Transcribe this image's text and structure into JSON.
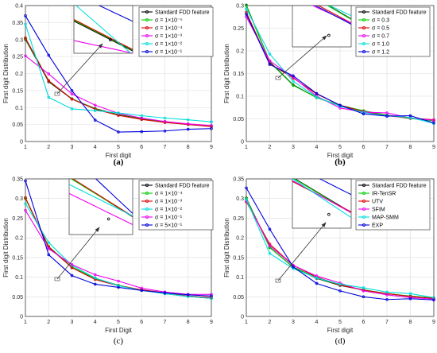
{
  "chart_data": [
    {
      "type": "line",
      "panel": "a",
      "caption": "(a)",
      "xlabel": "First digit",
      "ylabel": "First digit Distribution",
      "xlim": [
        1,
        9
      ],
      "ylim": [
        0,
        0.4
      ],
      "xticks": [
        "1",
        "2",
        "3",
        "4",
        "5",
        "6",
        "7",
        "8",
        "9"
      ],
      "yticks": [
        "0",
        "0.05",
        "0.1",
        "0.15",
        "0.2",
        "0.25",
        "0.3",
        "0.35",
        "0.4"
      ],
      "grid": true,
      "legend_position": "top-right",
      "x": [
        1,
        2,
        3,
        4,
        5,
        6,
        7,
        8,
        9
      ],
      "series": [
        {
          "name": "Standard FDD feature",
          "color": "#000000",
          "values": [
            0.301,
            0.176,
            0.125,
            0.097,
            0.079,
            0.067,
            0.058,
            0.051,
            0.046
          ]
        },
        {
          "name": "σ = 1×10⁻⁵",
          "color": "#00cc00",
          "values": [
            0.303,
            0.178,
            0.126,
            0.096,
            0.078,
            0.066,
            0.057,
            0.05,
            0.045
          ]
        },
        {
          "name": "σ = 1×10⁻⁴",
          "color": "#dd0000",
          "values": [
            0.305,
            0.179,
            0.125,
            0.095,
            0.077,
            0.065,
            0.056,
            0.05,
            0.044
          ]
        },
        {
          "name": "σ = 1×10⁻³",
          "color": "#ee00ee",
          "values": [
            0.252,
            0.199,
            0.14,
            0.107,
            0.083,
            0.069,
            0.059,
            0.052,
            0.047
          ]
        },
        {
          "name": "σ = 1×10⁻²",
          "color": "#00dddd",
          "values": [
            0.345,
            0.13,
            0.096,
            0.091,
            0.084,
            0.076,
            0.069,
            0.064,
            0.058
          ]
        },
        {
          "name": "σ = 1×10⁻¹",
          "color": "#0000dd",
          "values": [
            0.37,
            0.254,
            0.15,
            0.063,
            0.028,
            0.029,
            0.031,
            0.036,
            0.038
          ]
        }
      ]
    },
    {
      "type": "line",
      "panel": "b",
      "caption": "(b)",
      "xlabel": "First digit",
      "ylabel": "First digit Distribution",
      "xlim": [
        1,
        9
      ],
      "ylim": [
        0,
        0.3
      ],
      "xticks": [
        "1",
        "2",
        "3",
        "4",
        "5",
        "6",
        "7",
        "8",
        "9"
      ],
      "yticks": [
        "0",
        "0.05",
        "0.1",
        "0.15",
        "0.2",
        "0.25",
        "0.3"
      ],
      "grid": true,
      "legend_position": "top-right",
      "x": [
        1,
        2,
        3,
        4,
        5,
        6,
        7,
        8,
        9
      ],
      "series": [
        {
          "name": "Standard FDD feature",
          "color": "#000000",
          "values": [
            0.301,
            0.176,
            0.125,
            0.097,
            0.079,
            0.067,
            0.058,
            0.051,
            0.046
          ]
        },
        {
          "name": "σ = 0.3",
          "color": "#00cc00",
          "values": [
            0.3,
            0.175,
            0.124,
            0.097,
            0.08,
            0.068,
            0.058,
            0.051,
            0.046
          ]
        },
        {
          "name": "σ = 0.5",
          "color": "#dd0000",
          "values": [
            0.285,
            0.172,
            0.14,
            0.105,
            0.08,
            0.066,
            0.057,
            0.052,
            0.048
          ]
        },
        {
          "name": "σ = 0.7",
          "color": "#ee00ee",
          "values": [
            0.275,
            0.178,
            0.142,
            0.1,
            0.074,
            0.065,
            0.063,
            0.052,
            0.047
          ]
        },
        {
          "name": "σ = 1.0",
          "color": "#00dddd",
          "values": [
            0.293,
            0.193,
            0.133,
            0.098,
            0.078,
            0.064,
            0.057,
            0.053,
            0.04
          ]
        },
        {
          "name": "σ = 1.2",
          "color": "#0000dd",
          "values": [
            0.281,
            0.17,
            0.145,
            0.106,
            0.08,
            0.061,
            0.056,
            0.057,
            0.041
          ]
        }
      ]
    },
    {
      "type": "line",
      "panel": "c",
      "caption": "(c)",
      "xlabel": "First Digit",
      "ylabel": "First digit Distribution",
      "xlim": [
        1,
        9
      ],
      "ylim": [
        0,
        0.35
      ],
      "xticks": [
        "1",
        "2",
        "3",
        "4",
        "5",
        "6",
        "7",
        "8",
        "9"
      ],
      "yticks": [
        "0",
        "0.05",
        "0.1",
        "0.15",
        "0.2",
        "0.25",
        "0.3",
        "0.35"
      ],
      "grid": true,
      "legend_position": "top-right",
      "x": [
        1,
        2,
        3,
        4,
        5,
        6,
        7,
        8,
        9
      ],
      "series": [
        {
          "name": "Standard FDD feature",
          "color": "#000000",
          "values": [
            0.301,
            0.176,
            0.125,
            0.097,
            0.079,
            0.067,
            0.058,
            0.051,
            0.046
          ]
        },
        {
          "name": "σ = 1×10⁻⁴",
          "color": "#00cc00",
          "values": [
            0.3,
            0.178,
            0.126,
            0.096,
            0.079,
            0.067,
            0.058,
            0.051,
            0.046
          ]
        },
        {
          "name": "σ = 1×10⁻³",
          "color": "#dd0000",
          "values": [
            0.302,
            0.177,
            0.124,
            0.094,
            0.078,
            0.068,
            0.06,
            0.052,
            0.048
          ]
        },
        {
          "name": "σ = 1×10⁻²",
          "color": "#00dddd",
          "values": [
            0.287,
            0.188,
            0.13,
            0.098,
            0.078,
            0.066,
            0.058,
            0.051,
            0.046
          ]
        },
        {
          "name": "σ = 1×10⁻¹",
          "color": "#ee00ee",
          "values": [
            0.27,
            0.172,
            0.132,
            0.106,
            0.09,
            0.072,
            0.062,
            0.056,
            0.056
          ]
        },
        {
          "name": "σ = 5×10⁻¹",
          "color": "#0000dd",
          "values": [
            0.345,
            0.157,
            0.104,
            0.082,
            0.074,
            0.066,
            0.06,
            0.055,
            0.052
          ]
        }
      ]
    },
    {
      "type": "line",
      "panel": "d",
      "caption": "(d)",
      "xlabel": "First digit",
      "ylabel": "First digit Distribution",
      "xlim": [
        1,
        9
      ],
      "ylim": [
        0,
        0.35
      ],
      "xticks": [
        "1",
        "2",
        "3",
        "4",
        "5",
        "6",
        "7",
        "8",
        "9"
      ],
      "yticks": [
        "0",
        "0.05",
        "0.1",
        "0.15",
        "0.2",
        "0.25",
        "0.3",
        "0.35"
      ],
      "grid": true,
      "legend_position": "top-right",
      "x": [
        1,
        2,
        3,
        4,
        5,
        6,
        7,
        8,
        9
      ],
      "series": [
        {
          "name": "Standard FDD feature",
          "color": "#000000",
          "values": [
            0.301,
            0.176,
            0.125,
            0.097,
            0.079,
            0.067,
            0.058,
            0.051,
            0.046
          ]
        },
        {
          "name": "IR-TenSR",
          "color": "#00cc00",
          "values": [
            0.3,
            0.175,
            0.126,
            0.098,
            0.08,
            0.068,
            0.058,
            0.052,
            0.047
          ]
        },
        {
          "name": "UTV",
          "color": "#dd0000",
          "values": [
            0.292,
            0.184,
            0.13,
            0.1,
            0.08,
            0.067,
            0.058,
            0.051,
            0.046
          ]
        },
        {
          "name": "SFIM",
          "color": "#ee00ee",
          "values": [
            0.294,
            0.18,
            0.13,
            0.103,
            0.085,
            0.065,
            0.055,
            0.048,
            0.044
          ]
        },
        {
          "name": "MAP-SMM",
          "color": "#00dddd",
          "values": [
            0.298,
            0.16,
            0.122,
            0.098,
            0.082,
            0.073,
            0.062,
            0.058,
            0.048
          ]
        },
        {
          "name": "EXP",
          "color": "#0000dd",
          "values": [
            0.327,
            0.222,
            0.126,
            0.084,
            0.065,
            0.05,
            0.043,
            0.045,
            0.042
          ]
        }
      ]
    }
  ]
}
